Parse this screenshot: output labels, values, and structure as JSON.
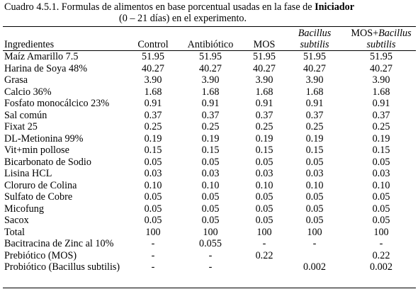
{
  "caption": {
    "prefix": "Cuadro 4.5.1.  Formulas de alimentos en base porcentual usadas en la fase de ",
    "bold": "Iniciador",
    "line2": "(0 – 21 días) en el experimento."
  },
  "headers": {
    "ingredient": "Ingredientes",
    "control": "Control",
    "antibiotic": "Antibiótico",
    "mos": "MOS",
    "bacillus_l1": "Bacillus",
    "bacillus_l2": "subtilis",
    "mosbac_l1_plain": "MOS+",
    "mosbac_l1_italic": "Bacillus",
    "mosbac_l2": "subtilis"
  },
  "rows": [
    {
      "name": "Maíz Amarillo 7.5",
      "values": [
        "51.95",
        "51.95",
        "51.95",
        "51.95",
        "51.95"
      ]
    },
    {
      "name": "Harina de Soya 48%",
      "values": [
        "40.27",
        "40.27",
        "40.27",
        "40.27",
        "40.27"
      ]
    },
    {
      "name": "Grasa",
      "values": [
        "3.90",
        "3.90",
        "3.90",
        "3.90",
        "3.90"
      ]
    },
    {
      "name": "Calcio 36%",
      "values": [
        "1.68",
        "1.68",
        "1.68",
        "1.68",
        "1.68"
      ]
    },
    {
      "name": "Fosfato monocálcico 23%",
      "values": [
        "0.91",
        "0.91",
        "0.91",
        "0.91",
        "0.91"
      ]
    },
    {
      "name": "Sal común",
      "values": [
        "0.37",
        "0.37",
        "0.37",
        "0.37",
        "0.37"
      ]
    },
    {
      "name": "Fixat 25",
      "values": [
        "0.25",
        "0.25",
        "0.25",
        "0.25",
        "0.25"
      ]
    },
    {
      "name": "DL-Metionina 99%",
      "values": [
        "0.19",
        "0.19",
        "0.19",
        "0.19",
        "0.19"
      ]
    },
    {
      "name": "Vit+min pollose",
      "values": [
        "0.15",
        "0.15",
        "0.15",
        "0.15",
        "0.15"
      ]
    },
    {
      "name": "Bicarbonato de Sodio",
      "values": [
        "0.05",
        "0.05",
        "0.05",
        "0.05",
        "0.05"
      ]
    },
    {
      "name": "Lisina HCL",
      "values": [
        "0.03",
        "0.03",
        "0.03",
        "0.03",
        "0.03"
      ]
    },
    {
      "name": "Cloruro de Colina",
      "values": [
        "0.10",
        "0.10",
        "0.10",
        "0.10",
        "0.10"
      ]
    },
    {
      "name": "Sulfato de Cobre",
      "values": [
        "0.05",
        "0.05",
        "0.05",
        "0.05",
        "0.05"
      ]
    },
    {
      "name": "Micofung",
      "values": [
        "0.05",
        "0.05",
        "0.05",
        "0.05",
        "0.05"
      ]
    },
    {
      "name": "Sacox",
      "values": [
        "0.05",
        "0.05",
        "0.05",
        "0.05",
        "0.05"
      ]
    },
    {
      "name": "Total",
      "values": [
        "100",
        "100",
        "100",
        "100",
        "100"
      ]
    },
    {
      "name": "Bacitracina de Zinc al 10%",
      "values": [
        "-",
        "0.055",
        "-",
        "-",
        "-"
      ]
    },
    {
      "name": "Prebiótico (MOS)",
      "values": [
        "-",
        "-",
        "0.22",
        "",
        "0.22"
      ]
    },
    {
      "name": "Probiótico (Bacillus subtilis)",
      "values": [
        "-",
        "-",
        "",
        "0.002",
        "0.002"
      ],
      "tall": true
    }
  ]
}
